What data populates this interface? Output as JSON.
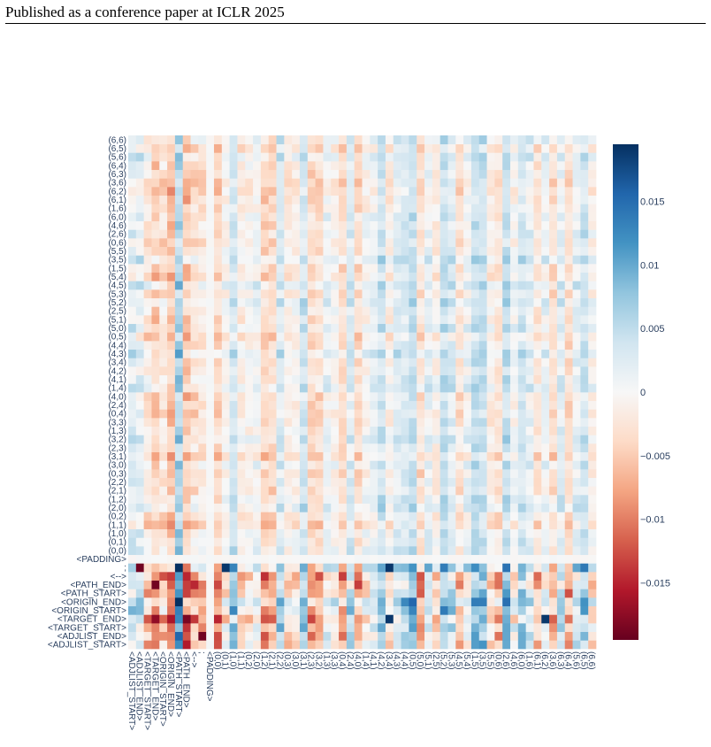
{
  "header": {
    "title": "Published as a conference paper at ICLR 2025"
  },
  "chart_data": {
    "type": "heatmap",
    "title": "",
    "xlabel": "",
    "ylabel": "",
    "colorscale": "RdBu (diverging)",
    "colors": {
      "negative": "#67001f",
      "zero": "#f7f7f7",
      "positive": "#053061"
    },
    "zlim": [
      -0.0195,
      0.0195
    ],
    "colorbar_ticks": [
      {
        "value": 0.015,
        "label": "0.015"
      },
      {
        "value": 0.01,
        "label": "0.01"
      },
      {
        "value": 0.005,
        "label": "0.005"
      },
      {
        "value": 0,
        "label": "0"
      },
      {
        "value": -0.005,
        "label": "−0.005"
      },
      {
        "value": -0.01,
        "label": "−0.01"
      },
      {
        "value": -0.015,
        "label": "−0.015"
      }
    ],
    "categories": [
      "<ADJLIST_START>",
      "<ADJLIST_END>",
      "<TARGET_START>",
      "<TARGET_END>",
      "<ORIGIN_START>",
      "<ORIGIN_END>",
      "<PATH_START>",
      "<PATH_END>",
      "<-->",
      ";",
      "<PADDING>",
      "(0,0)",
      "(0,1)",
      "(1,0)",
      "(1,1)",
      "(0,2)",
      "(2,0)",
      "(1,2)",
      "(2,1)",
      "(2,2)",
      "(0,3)",
      "(3,0)",
      "(3,1)",
      "(2,3)",
      "(3,2)",
      "(1,3)",
      "(3,3)",
      "(0,4)",
      "(2,4)",
      "(4,0)",
      "(1,4)",
      "(4,1)",
      "(4,2)",
      "(3,4)",
      "(4,3)",
      "(4,4)",
      "(0,5)",
      "(5,0)",
      "(5,1)",
      "(2,5)",
      "(5,2)",
      "(5,3)",
      "(4,5)",
      "(5,4)",
      "(1,5)",
      "(3,5)",
      "(5,5)",
      "(0,6)",
      "(2,6)",
      "(4,6)",
      "(6,0)",
      "(1,6)",
      "(6,1)",
      "(6,2)",
      "(3,6)",
      "(6,3)",
      "(6,4)",
      "(5,6)",
      "(6,5)",
      "(6,6)"
    ],
    "strong_cells": [
      {
        "row": ";",
        "col": "(0,1)",
        "sign": "positive"
      },
      {
        "row": ";",
        "col": "(3,4)",
        "sign": "positive"
      },
      {
        "row": "<TARGET_END>",
        "col": "(3,4)",
        "sign": "positive"
      },
      {
        "row": "<TARGET_END>",
        "col": "(6,2)",
        "sign": "positive"
      },
      {
        "row": "<ADJLIST_END>",
        "col": ";",
        "sign": "negative"
      },
      {
        "row": ";",
        "col": "<ADJLIST_END>",
        "sign": "negative"
      }
    ]
  }
}
